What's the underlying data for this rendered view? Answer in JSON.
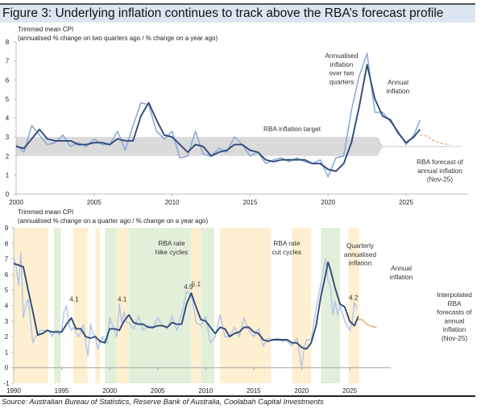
{
  "figure_title": "Figure 3: Underlying inflation continues to track above the RBA’s forecast profile",
  "source": "Source: Australian Bureau of Statistics, Reserve Bank of Australia, Coolabah Capital Investments",
  "colors": {
    "annual": "#2f4a7a",
    "annualised_top": "#8eaadb",
    "annualised_bottom": "#b4c6e7",
    "forecast": "#f0a070",
    "target_band": "#dadada",
    "hike_band": "#e2efd9",
    "cut_band": "#fdefd0"
  },
  "chart_data": [
    {
      "type": "line",
      "title": "Trimmed mean CPI",
      "subtitle": "(annualised % change on two quarters ago / % change on a year ago)",
      "xlim": [
        2000,
        2029
      ],
      "ylim": [
        0,
        8
      ],
      "x_ticks": [
        "2000",
        "2005",
        "2010",
        "2015",
        "2020",
        "2025"
      ],
      "y_ticks": [
        "0",
        "1",
        "2",
        "3",
        "4",
        "5",
        "6",
        "7",
        "8"
      ],
      "grid": false,
      "target_band": {
        "label": "RBA inflation target",
        "from": 2,
        "to": 3,
        "x_start": 2000,
        "x_end": 2023.5,
        "line_value": 2.5,
        "line_end": 2028.6
      },
      "series": [
        {
          "name": "Annualised inflation over two quarters",
          "x": [
            2000,
            2000.5,
            2001,
            2001.5,
            2002,
            2002.5,
            2003,
            2003.5,
            2004,
            2004.5,
            2005,
            2005.5,
            2006,
            2006.5,
            2007,
            2007.5,
            2008,
            2008.5,
            2009,
            2009.5,
            2010,
            2010.5,
            2011,
            2011.5,
            2012,
            2012.5,
            2013,
            2013.5,
            2014,
            2014.5,
            2015,
            2015.5,
            2016,
            2016.5,
            2017,
            2017.5,
            2018,
            2018.5,
            2019,
            2019.5,
            2020,
            2020.5,
            2021,
            2021.5,
            2022,
            2022.5,
            2023,
            2023.5,
            2024,
            2024.5,
            2025,
            2025.5,
            2025.9
          ],
          "values": [
            2.6,
            2.2,
            3.6,
            3.1,
            2.6,
            2.7,
            3.1,
            2.5,
            2.7,
            2.5,
            2.9,
            2.6,
            2.6,
            3.3,
            2.3,
            3.6,
            4.8,
            4.7,
            3.3,
            2.9,
            3.3,
            1.9,
            2.0,
            3.3,
            2.1,
            2.0,
            2.4,
            2.2,
            3.0,
            2.6,
            2.0,
            2.2,
            1.6,
            1.8,
            1.9,
            1.7,
            1.9,
            1.7,
            1.6,
            1.8,
            0.9,
            1.9,
            2.0,
            4.4,
            6.2,
            7.4,
            4.3,
            4.3,
            3.8,
            3.3,
            2.6,
            3.1,
            3.9
          ]
        },
        {
          "name": "Annual inflation",
          "x": [
            2000,
            2000.5,
            2001,
            2001.5,
            2002,
            2002.5,
            2003,
            2003.5,
            2004,
            2004.5,
            2005,
            2005.5,
            2006,
            2006.5,
            2007,
            2007.5,
            2008,
            2008.5,
            2009,
            2009.5,
            2010,
            2010.5,
            2011,
            2011.5,
            2012,
            2012.5,
            2013,
            2013.5,
            2014,
            2014.5,
            2015,
            2015.5,
            2016,
            2016.5,
            2017,
            2017.5,
            2018,
            2018.5,
            2019,
            2019.5,
            2020,
            2020.5,
            2021,
            2021.5,
            2022,
            2022.5,
            2023,
            2023.5,
            2024,
            2024.5,
            2025,
            2025.5,
            2025.9
          ],
          "values": [
            2.5,
            2.4,
            2.9,
            3.4,
            2.9,
            2.8,
            2.8,
            2.8,
            2.6,
            2.6,
            2.7,
            2.7,
            2.6,
            2.9,
            2.8,
            2.8,
            4.1,
            4.8,
            3.9,
            3.1,
            3.0,
            2.6,
            2.2,
            2.6,
            2.5,
            2.0,
            2.2,
            2.3,
            2.6,
            2.6,
            2.3,
            2.2,
            1.8,
            1.7,
            1.8,
            1.8,
            1.8,
            1.8,
            1.6,
            1.6,
            1.3,
            1.2,
            1.6,
            2.7,
            4.6,
            6.8,
            5.0,
            4.1,
            3.9,
            3.2,
            2.7,
            3.0,
            3.4
          ]
        },
        {
          "name": "RBA forecast of annual inflation (Nov-25)",
          "style": "dashed",
          "x": [
            2025.9,
            2026.3,
            2026.8,
            2027.3,
            2027.8
          ],
          "values": [
            3.1,
            3.05,
            2.8,
            2.65,
            2.6
          ]
        }
      ],
      "annotations": [
        {
          "text": "Annualised inflation over two quarters",
          "lines": [
            "Annualised",
            "inflation",
            "over two",
            "quarters"
          ]
        },
        {
          "text": "Annual inflation",
          "lines": [
            "Annual",
            "inflation"
          ]
        },
        {
          "text": "RBA forecast of annual inflation (Nov-25)",
          "lines": [
            "RBA forecast of",
            "annual inflation",
            "(Nov-25)"
          ]
        }
      ]
    },
    {
      "type": "line",
      "title": "Trimmed mean CPI",
      "subtitle": "(annualised % change on a quarter ago / % change on a year ago)",
      "xlim": [
        1990,
        2029.5
      ],
      "ylim": [
        -1,
        9
      ],
      "x_ticks": [
        "1990",
        "1995",
        "2000",
        "2005",
        "2010",
        "2015",
        "2020",
        "2025"
      ],
      "y_ticks": [
        "-1",
        "0",
        "1",
        "2",
        "3",
        "4",
        "5",
        "6",
        "7",
        "8",
        "9"
      ],
      "grid": false,
      "bands": [
        {
          "type": "cut",
          "from": 1990,
          "to": 1993.6
        },
        {
          "type": "hike",
          "from": 1994.2,
          "to": 1994.9
        },
        {
          "type": "cut",
          "from": 1996.2,
          "to": 1997.7
        },
        {
          "type": "cut",
          "from": 1998.5,
          "to": 1999.0
        },
        {
          "type": "hike",
          "from": 1999.5,
          "to": 2000.7
        },
        {
          "type": "cut",
          "from": 2000.7,
          "to": 2002.0
        },
        {
          "type": "hike",
          "from": 2002.0,
          "to": 2008.5
        },
        {
          "type": "cut",
          "from": 2008.5,
          "to": 2009.5
        },
        {
          "type": "hike",
          "from": 2009.5,
          "to": 2010.9
        },
        {
          "type": "cut",
          "from": 2011.5,
          "to": 2016.8
        },
        {
          "type": "cut",
          "from": 2019.0,
          "to": 2021.0
        },
        {
          "type": "hike",
          "from": 2022.0,
          "to": 2024.0
        },
        {
          "type": "cut",
          "from": 2024.9,
          "to": 2026.0
        }
      ],
      "band_labels": [
        {
          "text": "RBA rate hike cycles",
          "lines": [
            "RBA rate",
            "hike cycles"
          ]
        },
        {
          "text": "RBA rate cut cycles",
          "lines": [
            "RBA rate",
            "cut cycles"
          ]
        }
      ],
      "series": [
        {
          "name": "Quarterly annualised inflation",
          "x": [
            1990,
            1990.25,
            1990.5,
            1990.75,
            1991,
            1991.25,
            1991.5,
            1991.75,
            1992,
            1992.25,
            1992.5,
            1992.75,
            1993,
            1993.25,
            1993.5,
            1993.75,
            1994,
            1994.25,
            1994.5,
            1994.75,
            1995,
            1995.25,
            1995.5,
            1995.75,
            1996,
            1996.25,
            1996.5,
            1996.75,
            1997,
            1997.25,
            1997.5,
            1997.75,
            1998,
            1998.25,
            1998.5,
            1998.75,
            1999,
            1999.25,
            1999.5,
            1999.75,
            2000,
            2000.25,
            2000.5,
            2000.75,
            2001,
            2001.25,
            2001.5,
            2001.75,
            2002,
            2002.5,
            2003,
            2003.5,
            2004,
            2004.5,
            2005,
            2005.5,
            2006,
            2006.5,
            2007,
            2007.5,
            2008,
            2008.5,
            2009,
            2009.5,
            2010,
            2010.5,
            2011,
            2011.5,
            2012,
            2012.5,
            2013,
            2013.5,
            2014,
            2014.5,
            2015,
            2015.5,
            2016,
            2016.5,
            2017,
            2017.5,
            2018,
            2018.5,
            2019,
            2019.5,
            2020,
            2020.25,
            2020.5,
            2021,
            2021.5,
            2022,
            2022.25,
            2022.5,
            2022.75,
            2023,
            2023.25,
            2023.5,
            2023.75,
            2024,
            2024.5,
            2025,
            2025.25,
            2025.5,
            2025.75
          ],
          "values": [
            7.0,
            6.5,
            5.3,
            7.4,
            3.2,
            4.0,
            4.4,
            3.0,
            1.6,
            2.0,
            2.1,
            2.4,
            2.4,
            2.4,
            2.4,
            2.3,
            2.0,
            2.3,
            2.4,
            2.1,
            2.4,
            3.6,
            4.0,
            2.8,
            2.4,
            2.6,
            2.3,
            2.0,
            2.3,
            2.8,
            1.6,
            0.8,
            2.8,
            2.2,
            2.0,
            1.2,
            1.6,
            2.0,
            1.7,
            1.6,
            3.2,
            2.8,
            2.4,
            2.0,
            4.1,
            2.9,
            3.6,
            2.9,
            2.9,
            2.5,
            3.3,
            2.4,
            2.7,
            2.5,
            3.2,
            2.7,
            2.5,
            3.3,
            2.4,
            3.5,
            4.9,
            4.7,
            2.9,
            2.7,
            3.3,
            1.6,
            2.0,
            3.4,
            2.0,
            2.0,
            2.6,
            2.0,
            3.2,
            2.4,
            2.0,
            2.5,
            1.4,
            1.9,
            1.8,
            1.9,
            1.7,
            1.7,
            1.4,
            1.9,
            0.0,
            1.2,
            1.8,
            1.8,
            3.8,
            5.4,
            6.2,
            7.0,
            5.6,
            5.2,
            3.4,
            4.3,
            3.4,
            4.0,
            3.0,
            2.4,
            2.9,
            4.2,
            3.8
          ]
        },
        {
          "name": "Annual inflation",
          "x": [
            1990,
            1990.5,
            1991,
            1991.5,
            1992,
            1992.5,
            1993,
            1993.5,
            1994,
            1994.5,
            1995,
            1995.5,
            1996,
            1996.5,
            1997,
            1997.5,
            1998,
            1998.5,
            1999,
            1999.5,
            2000,
            2000.5,
            2001,
            2001.5,
            2002,
            2002.5,
            2003,
            2003.5,
            2004,
            2004.5,
            2005,
            2005.5,
            2006,
            2006.5,
            2007,
            2007.5,
            2008,
            2008.5,
            2009,
            2009.5,
            2010,
            2010.5,
            2011,
            2011.5,
            2012,
            2012.5,
            2013,
            2013.5,
            2014,
            2014.5,
            2015,
            2015.5,
            2016,
            2016.5,
            2017,
            2017.5,
            2018,
            2018.5,
            2019,
            2019.5,
            2020,
            2020.5,
            2021,
            2021.5,
            2022,
            2022.5,
            2022.75,
            2023,
            2023.5,
            2024,
            2024.5,
            2025,
            2025.5,
            2025.9
          ],
          "values": [
            6.7,
            6.6,
            6.5,
            5.0,
            3.6,
            2.1,
            2.2,
            2.4,
            2.3,
            2.3,
            2.3,
            2.8,
            3.2,
            2.5,
            2.5,
            2.0,
            1.9,
            2.0,
            1.7,
            1.6,
            2.5,
            2.5,
            2.4,
            3.0,
            3.4,
            2.9,
            2.8,
            2.8,
            2.6,
            2.6,
            2.7,
            2.7,
            2.6,
            2.9,
            2.8,
            2.8,
            4.1,
            4.8,
            3.9,
            3.1,
            3.0,
            2.6,
            2.2,
            2.6,
            2.5,
            2.0,
            2.2,
            2.3,
            2.6,
            2.6,
            2.3,
            2.2,
            1.8,
            1.7,
            1.8,
            1.8,
            1.8,
            1.8,
            1.6,
            1.6,
            1.3,
            1.2,
            1.6,
            2.7,
            4.6,
            6.0,
            6.8,
            6.3,
            5.1,
            4.1,
            3.9,
            3.0,
            2.7,
            3.3
          ]
        },
        {
          "name": "Interpolated RBA forecasts of annual inflation (Nov-25)",
          "x": [
            2025.9,
            2026.3,
            2026.8,
            2027.3,
            2027.8
          ],
          "values": [
            3.1,
            3.1,
            2.8,
            2.65,
            2.6
          ]
        }
      ],
      "data_labels": [
        {
          "x": 1996.3,
          "value": 4.1,
          "text": "4.1"
        },
        {
          "x": 2001.3,
          "value": 4.1,
          "text": "4.1"
        },
        {
          "x": 2008.2,
          "value": 4.9,
          "text": "4.9"
        },
        {
          "x": 2009.0,
          "value": 5.1,
          "text": "5.1"
        },
        {
          "x": 2025.4,
          "value": 4.2,
          "text": "4.2"
        }
      ],
      "annotations": [
        {
          "text": "Quarterly annualised inflation",
          "lines": [
            "Quarterly",
            "annualised",
            "inflation"
          ]
        },
        {
          "text": "Annual inflation",
          "lines": [
            "Annual",
            "inflation"
          ]
        },
        {
          "text": "Interpolated RBA forecasts of annual inflation (Nov-25)",
          "lines": [
            "Interpolated",
            "RBA",
            "forecasts of",
            "annual",
            "inflation",
            "(Nov-25)"
          ]
        }
      ]
    }
  ]
}
